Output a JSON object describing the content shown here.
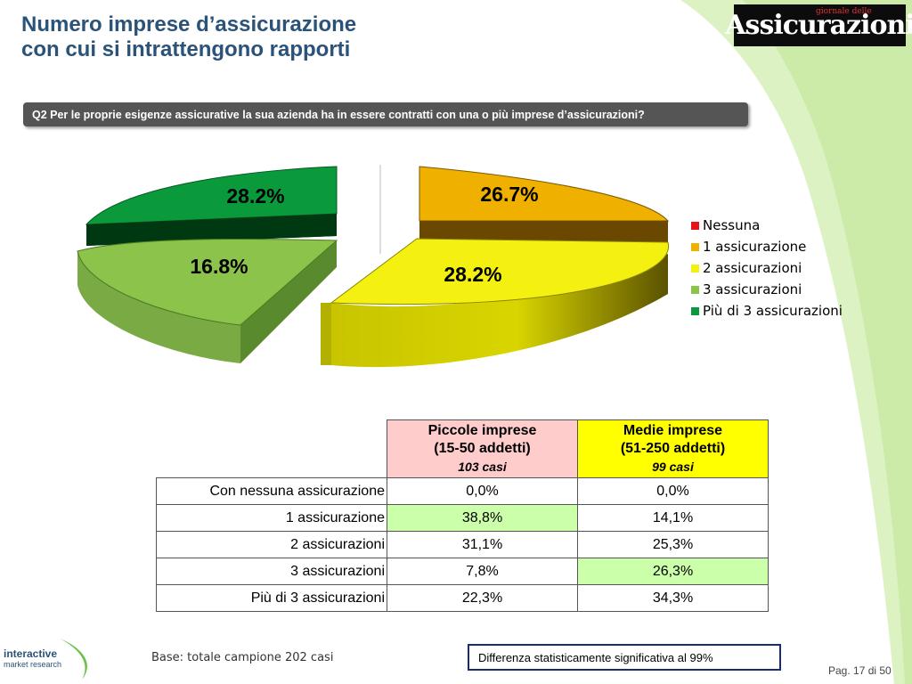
{
  "title_line1": "Numero imprese d’assicurazione",
  "title_line2": "con cui si intrattengono rapporti",
  "logo_text": "Assicurazioni",
  "logo_small": "giornale delle",
  "question": "Q2 Per le proprie esigenze assicurative la sua azienda ha in essere contratti con una o più imprese d’assicurazioni?",
  "chart_data": {
    "type": "pie",
    "categories": [
      "Nessuna",
      "1 assicurazione",
      "2 assicurazioni",
      "3 assicurazioni",
      "Più di 3 assicurazioni"
    ],
    "values": [
      0.0,
      26.7,
      28.2,
      16.8,
      28.2
    ],
    "labels": [
      "",
      "26.7%",
      "28.2%",
      "16.8%",
      "28.2%"
    ],
    "colors": [
      "#e8141c",
      "#f0b000",
      "#f4f010",
      "#8cc34a",
      "#0a9a3c"
    ],
    "legend_position": "right"
  },
  "legend": [
    {
      "label": "Nessuna",
      "color": "#e8141c"
    },
    {
      "label": "1 assicurazione",
      "color": "#f0b000"
    },
    {
      "label": "2 assicurazioni",
      "color": "#f4f010"
    },
    {
      "label": "3 assicurazioni",
      "color": "#8cc34a"
    },
    {
      "label": "Più di 3 assicurazioni",
      "color": "#0a9a3c"
    }
  ],
  "table": {
    "col1_title1": "Piccole imprese",
    "col1_title2": "(15-50 addetti)",
    "col1_sub": "103 casi",
    "col2_title1": "Medie imprese",
    "col2_title2": "(51-250 addetti)",
    "col2_sub": "99 casi",
    "col1_color": "#ffcccc",
    "col2_color": "#ffff00",
    "rows": [
      {
        "label": "Con nessuna assicurazione",
        "v1": "0,0%",
        "v2": "0,0%"
      },
      {
        "label": "1 assicurazione",
        "v1": "38,8%",
        "v2": "14,1%"
      },
      {
        "label": "2 assicurazioni",
        "v1": "31,1%",
        "v2": "25,3%"
      },
      {
        "label": "3 assicurazioni",
        "v1": "7,8%",
        "v2": "26,3%"
      },
      {
        "label": "Più di 3 assicurazioni",
        "v1": "22,3%",
        "v2": "34,3%"
      }
    ]
  },
  "base": "Base: totale campione  202 casi",
  "significance": "Differenza statisticamente significativa al 99%",
  "page": "Pag. 17 di 50",
  "company1": "interactive",
  "company2": "market research"
}
